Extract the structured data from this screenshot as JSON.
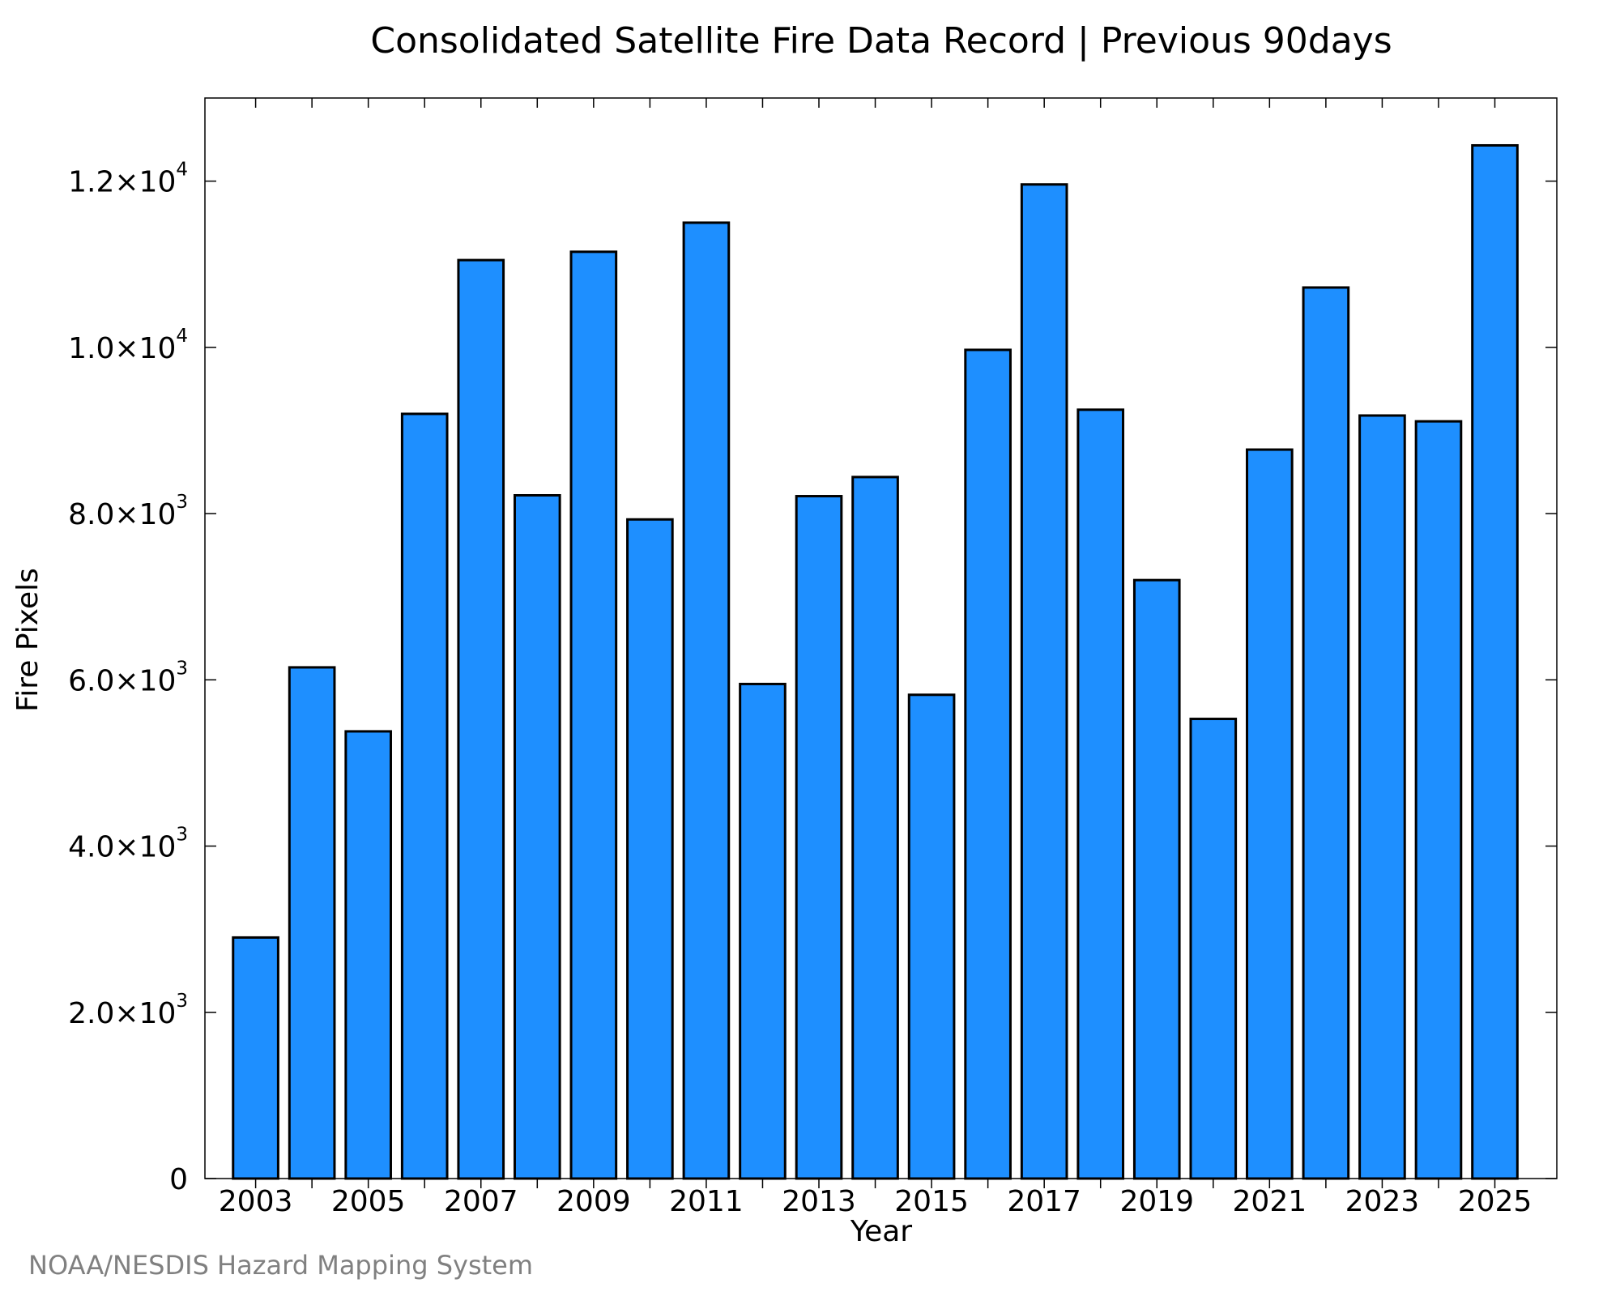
{
  "credit": "NOAA/NESDIS Hazard Mapping System",
  "colors": {
    "bar_fill": "#1e8fff",
    "bar_stroke": "#000000",
    "credit_text": "#808080"
  },
  "chart_data": {
    "type": "bar",
    "title": "Consolidated Satellite Fire Data Record | Previous 90days",
    "xlabel": "Year",
    "ylabel": "Fire Pixels",
    "categories": [
      2003,
      2004,
      2005,
      2006,
      2007,
      2008,
      2009,
      2010,
      2011,
      2012,
      2013,
      2014,
      2015,
      2016,
      2017,
      2018,
      2019,
      2020,
      2021,
      2022,
      2023,
      2024,
      2025
    ],
    "values": [
      2900,
      6150,
      5380,
      9200,
      11050,
      8220,
      11150,
      7930,
      11500,
      5950,
      8210,
      8440,
      5820,
      9970,
      11960,
      9250,
      7200,
      5530,
      8770,
      10720,
      9180,
      9110,
      12430
    ],
    "xlim": [
      2002.1,
      2026.1
    ],
    "ylim": [
      0,
      13000
    ],
    "x_tick_labels": [
      "2003",
      "2005",
      "2007",
      "2009",
      "2011",
      "2013",
      "2015",
      "2017",
      "2019",
      "2021",
      "2023",
      "2025"
    ],
    "y_ticks": [
      {
        "value": 0,
        "mantissa": "0",
        "exponent": ""
      },
      {
        "value": 2000,
        "mantissa": "2.0×10",
        "exponent": "3"
      },
      {
        "value": 4000,
        "mantissa": "4.0×10",
        "exponent": "3"
      },
      {
        "value": 6000,
        "mantissa": "6.0×10",
        "exponent": "3"
      },
      {
        "value": 8000,
        "mantissa": "8.0×10",
        "exponent": "3"
      },
      {
        "value": 10000,
        "mantissa": "1.0×10",
        "exponent": "4"
      },
      {
        "value": 12000,
        "mantissa": "1.2×10",
        "exponent": "4"
      }
    ],
    "grid": false,
    "legend": "none"
  }
}
